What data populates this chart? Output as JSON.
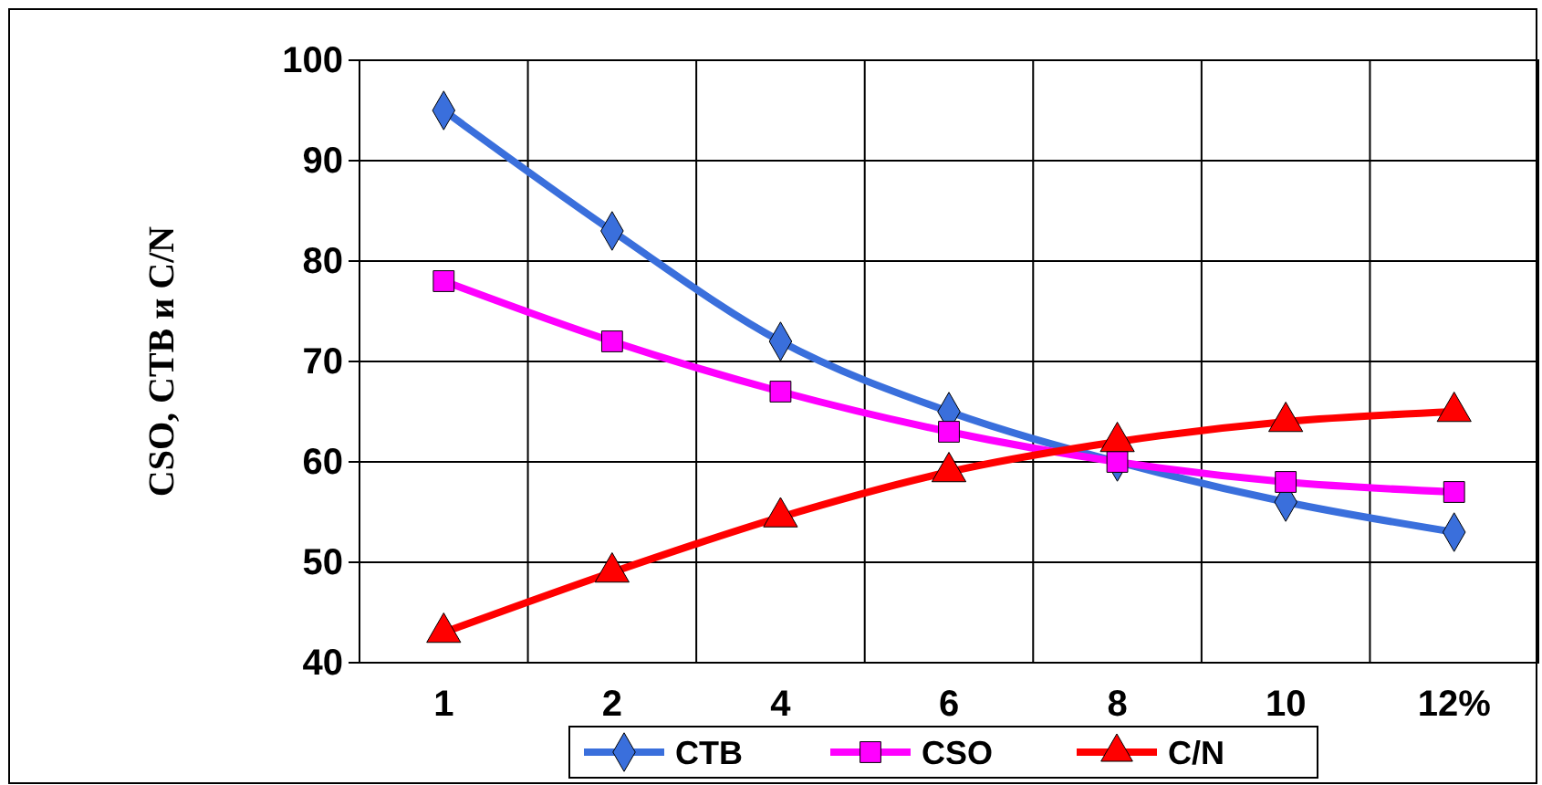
{
  "chart_data": {
    "type": "line",
    "ylabel": "CSO, CTB и C/N",
    "categories": [
      "1",
      "2",
      "4",
      "6",
      "8",
      "10",
      "12%"
    ],
    "series": [
      {
        "name": "CTB",
        "color": "#3a6fdc",
        "marker": "diamond",
        "values": [
          95,
          83,
          72,
          65,
          60,
          56,
          53
        ]
      },
      {
        "name": "CSO",
        "color": "#ff00ff",
        "marker": "square",
        "values": [
          78,
          72,
          67,
          63,
          60,
          58,
          57
        ]
      },
      {
        "name": "C/N",
        "color": "#ff0000",
        "marker": "triangle",
        "values": [
          43,
          49,
          54.5,
          59,
          62,
          64,
          65
        ]
      }
    ],
    "ylim": [
      40,
      100
    ],
    "yticks": [
      40,
      50,
      60,
      70,
      80,
      90,
      100
    ],
    "grid": true,
    "legend": "bottom",
    "line_style": "solid"
  }
}
